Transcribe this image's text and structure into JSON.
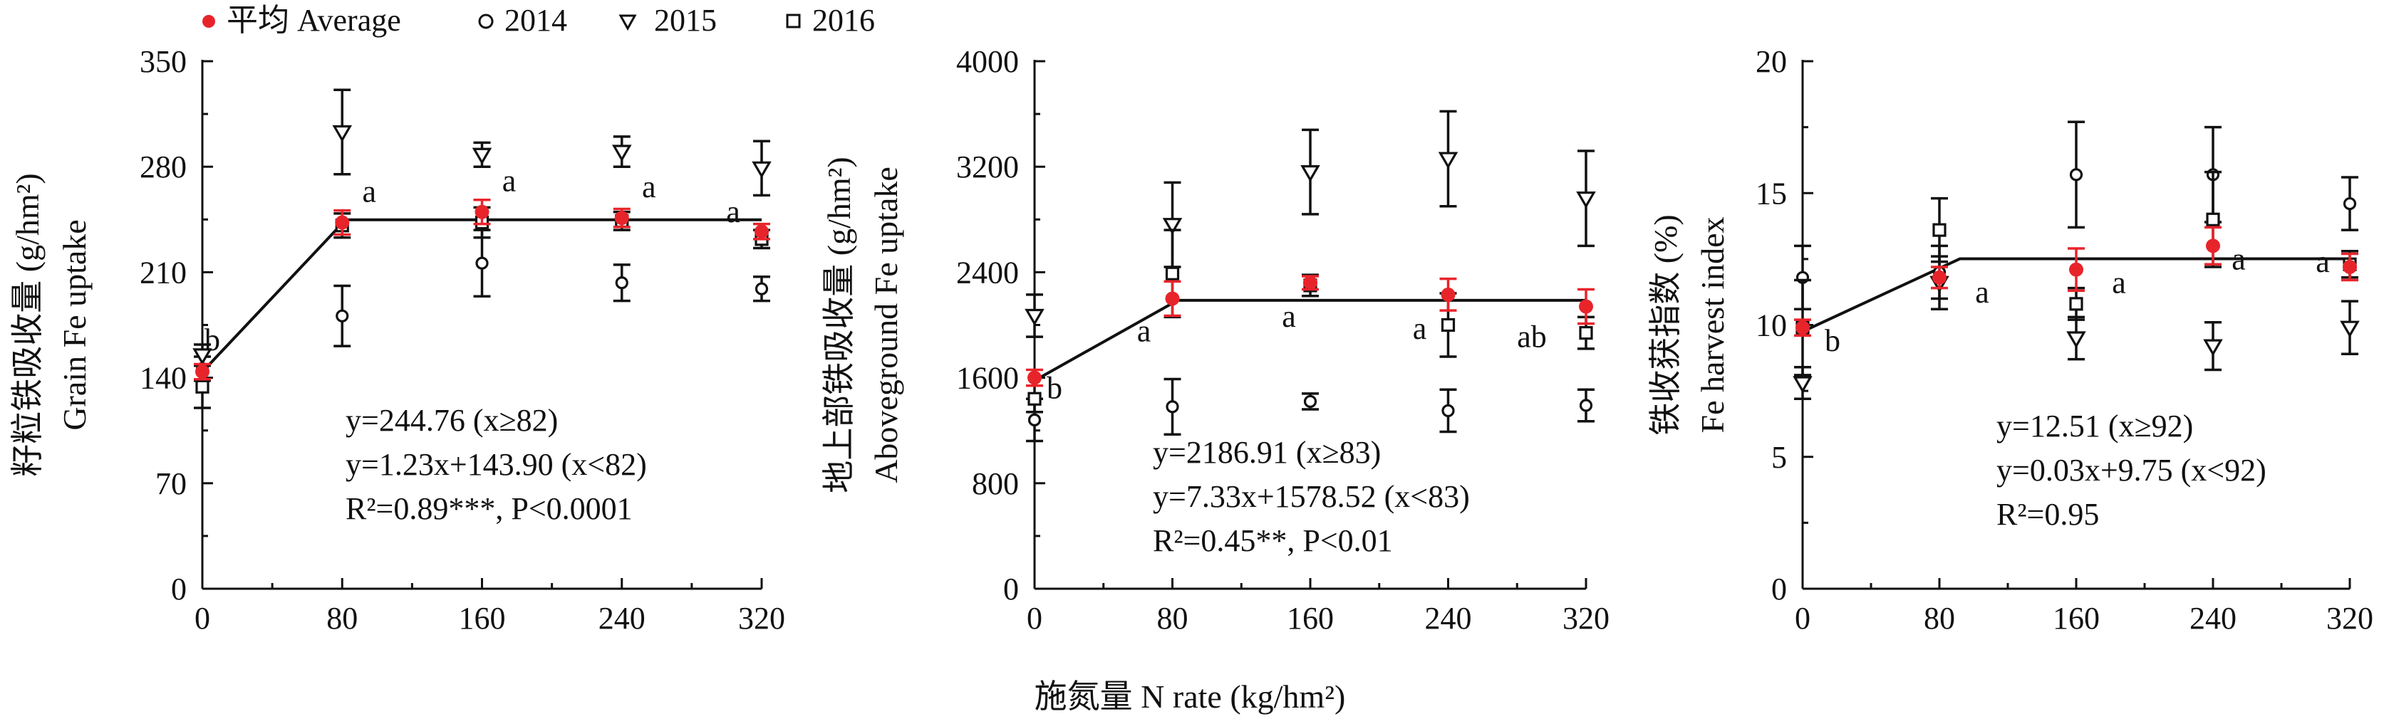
{
  "legend": {
    "items": [
      {
        "label": "平均 Average",
        "marker": "filled-circle",
        "color": "#e8242b"
      },
      {
        "label": "2014",
        "marker": "open-circle",
        "color": "#111111"
      },
      {
        "label": "2015",
        "marker": "down-triangle",
        "color": "#111111"
      },
      {
        "label": "2016",
        "marker": "open-square",
        "color": "#111111"
      }
    ]
  },
  "shared_xlabel": "施氮量 N rate (kg/hm²)",
  "colors": {
    "average": "#e8242b",
    "years": "#111111"
  },
  "chart_data": [
    {
      "type": "scatter",
      "ylabel_cn": "籽粒铁吸收量 (g/hm²)",
      "ylabel_en": "Grain Fe uptake",
      "x": [
        0,
        80,
        160,
        240,
        320
      ],
      "xticks": [
        0,
        80,
        160,
        240,
        320
      ],
      "xlim": [
        0,
        320
      ],
      "yticks": [
        0,
        70,
        140,
        210,
        280,
        350
      ],
      "ylim": [
        0,
        350
      ],
      "series": [
        {
          "name": "平均 Average",
          "values": [
            144,
            243,
            250,
            246,
            237
          ],
          "err": [
            5,
            8,
            8,
            6,
            5
          ]
        },
        {
          "name": "2014",
          "values": [
            146,
            181,
            216,
            203,
            199
          ],
          "err": [
            8,
            20,
            22,
            12,
            8
          ]
        },
        {
          "name": "2015",
          "values": [
            155,
            303,
            288,
            290,
            279
          ],
          "err": [
            7,
            28,
            8,
            10,
            18
          ]
        },
        {
          "name": "2016",
          "values": [
            134,
            241,
            243,
            244,
            232
          ],
          "err": [
            14,
            8,
            10,
            6,
            6
          ]
        }
      ],
      "letters": [
        "b",
        "a",
        "a",
        "a",
        "a"
      ],
      "fit": {
        "breakpoint": 82,
        "plateau": 244.76,
        "slope": 1.23,
        "intercept": 143.9
      },
      "equations": [
        "y=244.76 (x≥82)",
        "y=1.23x+143.90 (x<82)",
        "R²=0.89***, P<0.0001"
      ]
    },
    {
      "type": "scatter",
      "ylabel_cn": "地上部铁吸收量 (g/hm²)",
      "ylabel_en": "Aboveground Fe uptake",
      "x": [
        0,
        80,
        160,
        240,
        320
      ],
      "xticks": [
        0,
        80,
        160,
        240,
        320
      ],
      "xlim": [
        0,
        320
      ],
      "yticks": [
        0,
        800,
        1600,
        2400,
        3200,
        4000
      ],
      "ylim": [
        0,
        4000
      ],
      "series": [
        {
          "name": "平均 Average",
          "values": [
            1600,
            2200,
            2320,
            2230,
            2140
          ],
          "err": [
            60,
            130,
            50,
            120,
            130
          ]
        },
        {
          "name": "2014",
          "values": [
            1280,
            1380,
            1420,
            1350,
            1390
          ],
          "err": [
            160,
            210,
            60,
            160,
            120
          ]
        },
        {
          "name": "2015",
          "values": [
            2070,
            2760,
            3160,
            3260,
            2960
          ],
          "err": [
            160,
            320,
            320,
            360,
            360
          ]
        },
        {
          "name": "2016",
          "values": [
            1440,
            2390,
            2300,
            2000,
            1940
          ],
          "err": [
            100,
            330,
            80,
            240,
            120
          ]
        }
      ],
      "letters": [
        "b",
        "a",
        "a",
        "a",
        "ab"
      ],
      "fit": {
        "breakpoint": 83,
        "plateau": 2186.91,
        "slope": 7.33,
        "intercept": 1578.52
      },
      "equations": [
        "y=2186.91 (x≥83)",
        "y=7.33x+1578.52 (x<83)",
        "R²=0.45**, P<0.01"
      ]
    },
    {
      "type": "scatter",
      "ylabel_cn": "铁收获指数 (%)",
      "ylabel_en": "Fe harvest index",
      "x": [
        0,
        80,
        160,
        240,
        320
      ],
      "xticks": [
        0,
        80,
        160,
        240,
        320
      ],
      "xlim": [
        0,
        320
      ],
      "yticks": [
        0,
        5,
        10,
        15,
        20
      ],
      "ylim": [
        0,
        20
      ],
      "series": [
        {
          "name": "平均 Average",
          "values": [
            9.9,
            11.8,
            12.1,
            13.0,
            12.2
          ],
          "err": [
            0.3,
            0.4,
            0.8,
            0.7,
            0.5
          ]
        },
        {
          "name": "2014",
          "values": [
            11.8,
            12.0,
            15.7,
            15.7,
            14.6
          ],
          "err": [
            1.2,
            1.0,
            2.0,
            1.8,
            1.0
          ]
        },
        {
          "name": "2015",
          "values": [
            7.8,
            11.6,
            9.5,
            9.2,
            9.9
          ],
          "err": [
            0.6,
            1.0,
            0.8,
            0.9,
            1.0
          ]
        },
        {
          "name": "2016",
          "values": [
            9.9,
            13.6,
            10.8,
            14.0,
            12.3
          ],
          "err": [
            1.8,
            1.2,
            0.6,
            1.8,
            0.5
          ]
        }
      ],
      "letters": [
        "b",
        "a",
        "a",
        "a",
        "a"
      ],
      "fit": {
        "breakpoint": 92,
        "plateau": 12.51,
        "slope": 0.03,
        "intercept": 9.75
      },
      "equations": [
        "y=12.51 (x≥92)",
        "y=0.03x+9.75 (x<92)",
        "R²=0.95"
      ]
    }
  ]
}
